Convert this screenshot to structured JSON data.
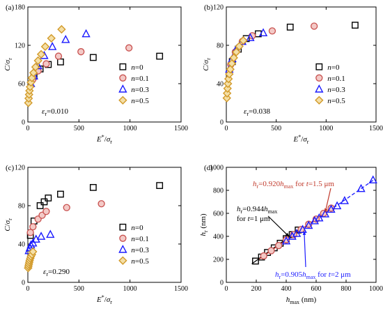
{
  "legend_labels": [
    "n=0",
    "n=0.1",
    "n=0.3",
    "n=0.5"
  ],
  "colors": {
    "n0": "#000000",
    "n01": "#c8504e",
    "n03": "#1a1aff",
    "n05": "#d29a2a",
    "fit_black": "#000000",
    "fit_red": "#c0392b",
    "fit_blue": "#1a1aff"
  },
  "chart_data": [
    {
      "type": "scatter",
      "panel": "(a)",
      "xlabel": "E*/σr",
      "ylabel": "C/σr",
      "xlim": [
        0,
        1500
      ],
      "ylim": [
        0,
        180
      ],
      "xticks": [
        0,
        500,
        1000,
        1500
      ],
      "yticks": [
        0,
        60,
        120,
        180
      ],
      "annotation": "εr=0.010",
      "series": [
        {
          "name": "n=0",
          "x": [
            60,
            120,
            200,
            320,
            640,
            1290
          ],
          "y": [
            72,
            83,
            90,
            94,
            101,
            103
          ]
        },
        {
          "name": "n=0.1",
          "x": [
            50,
            100,
            180,
            300,
            520,
            990
          ],
          "y": [
            67,
            80,
            91,
            103,
            110,
            116
          ]
        },
        {
          "name": "n=0.3",
          "x": [
            30,
            60,
            100,
            160,
            240,
            370,
            570
          ],
          "y": [
            60,
            72,
            88,
            104,
            118,
            129,
            138
          ]
        },
        {
          "name": "n=0.5",
          "x": [
            5,
            8,
            12,
            16,
            22,
            30,
            40,
            55,
            75,
            100,
            130,
            170,
            230,
            330
          ],
          "y": [
            30,
            37,
            43,
            49,
            55,
            62,
            69,
            77,
            86,
            96,
            106,
            118,
            131,
            145
          ]
        }
      ]
    },
    {
      "type": "scatter",
      "panel": "(b)",
      "xlabel": "E*/σr",
      "ylabel": "C/σr",
      "xlim": [
        0,
        1500
      ],
      "ylim": [
        0,
        120
      ],
      "xticks": [
        0,
        500,
        1000,
        1500
      ],
      "yticks": [
        0,
        40,
        80,
        120
      ],
      "annotation": "εr=0.038",
      "series": [
        {
          "name": "n=0",
          "x": [
            60,
            120,
            200,
            320,
            640,
            1290
          ],
          "y": [
            63,
            76,
            87,
            92,
            99,
            101
          ]
        },
        {
          "name": "n=0.1",
          "x": [
            45,
            90,
            160,
            260,
            460,
            880
          ],
          "y": [
            60,
            73,
            84,
            90,
            95,
            100
          ]
        },
        {
          "name": "n=0.3",
          "x": [
            30,
            60,
            100,
            160,
            240,
            370
          ],
          "y": [
            55,
            66,
            76,
            84,
            88,
            93
          ]
        },
        {
          "name": "n=0.5",
          "x": [
            5,
            8,
            12,
            16,
            22,
            30,
            40,
            55,
            75,
            100,
            130,
            170
          ],
          "y": [
            25,
            30,
            35,
            40,
            45,
            50,
            55,
            61,
            67,
            73,
            79,
            85
          ]
        }
      ]
    },
    {
      "type": "scatter",
      "panel": "(c)",
      "xlabel": "E*/σr",
      "ylabel": "C/σr",
      "xlim": [
        0,
        1500
      ],
      "ylim": [
        0,
        120
      ],
      "xticks": [
        0,
        500,
        1000,
        1500
      ],
      "yticks": [
        0,
        40,
        80,
        120
      ],
      "annotation": "εr=0.290",
      "series": [
        {
          "name": "n=0",
          "x": [
            25,
            60,
            120,
            160,
            200,
            320,
            640,
            1290
          ],
          "y": [
            49,
            64,
            80,
            84,
            88,
            92,
            99,
            101
          ]
        },
        {
          "name": "n=0.1",
          "x": [
            25,
            50,
            100,
            140,
            180,
            380,
            720
          ],
          "y": [
            52,
            58,
            66,
            70,
            74,
            78,
            82
          ]
        },
        {
          "name": "n=0.3",
          "x": [
            10,
            20,
            30,
            50,
            80,
            130,
            220
          ],
          "y": [
            33,
            36,
            39,
            41,
            45,
            48,
            50
          ]
        },
        {
          "name": "n=0.5",
          "x": [
            3,
            6,
            10,
            14,
            18,
            24,
            30,
            40,
            50
          ],
          "y": [
            15,
            17,
            19,
            21,
            23,
            25,
            27,
            29,
            32
          ]
        }
      ]
    },
    {
      "type": "scatter",
      "panel": "(d)",
      "xlabel": "hmax (nm)",
      "ylabel": "hr (nm)",
      "xlim": [
        0,
        1000
      ],
      "ylim": [
        0,
        1000
      ],
      "xticks": [
        0,
        200,
        400,
        600,
        800,
        1000
      ],
      "yticks": [
        0,
        200,
        400,
        600,
        800,
        1000
      ],
      "series": [
        {
          "name": "t=1 μm",
          "x": [
            195,
            235,
            275,
            320,
            360,
            400,
            440,
            480
          ],
          "y": [
            185,
            220,
            260,
            300,
            340,
            380,
            415,
            455
          ]
        },
        {
          "name": "t=1.5 μm",
          "x": [
            250,
            300,
            350,
            400,
            450,
            500,
            550,
            600,
            650,
            700
          ],
          "y": [
            230,
            275,
            320,
            370,
            415,
            460,
            505,
            550,
            600,
            645
          ]
        },
        {
          "name": "t=2 μm",
          "x": [
            400,
            440,
            470,
            510,
            550,
            590,
            620,
            660,
            700,
            740,
            790,
            900,
            980
          ],
          "y": [
            360,
            400,
            425,
            460,
            495,
            535,
            560,
            595,
            635,
            665,
            710,
            815,
            890
          ]
        }
      ],
      "fits": [
        {
          "label": "hr=0.944hmax",
          "label2": "for t=1 μm",
          "slope": 0.944,
          "x": [
            170,
            500
          ]
        },
        {
          "label": "hr=0.920hmax",
          "label2": "for t=1.5 μm",
          "slope": 0.92,
          "x": [
            220,
            720
          ]
        },
        {
          "label": "hr=0.905hmax",
          "label2": "for t=2 μm",
          "slope": 0.905,
          "x": [
            350,
            990
          ]
        }
      ]
    }
  ]
}
